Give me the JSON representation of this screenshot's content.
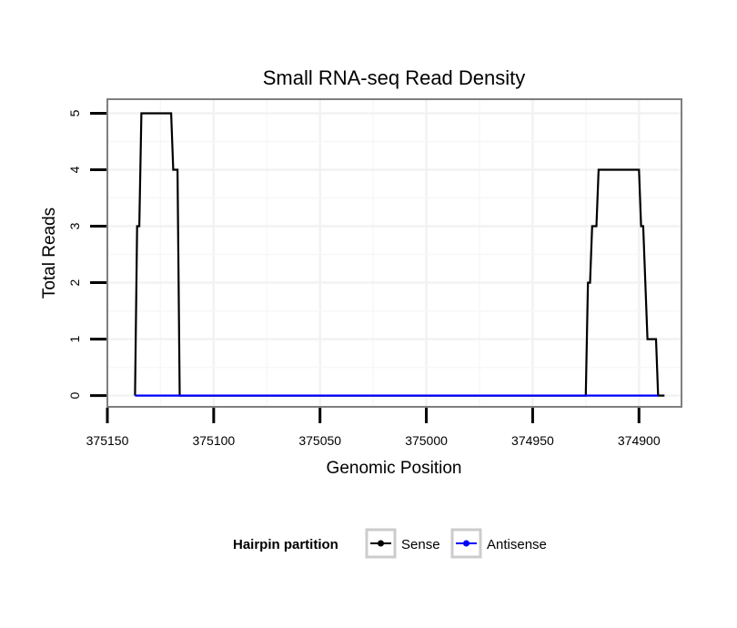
{
  "chart_data": {
    "type": "line",
    "title": "Small RNA-seq Read Density",
    "xlabel": "Genomic Position",
    "ylabel": "Total Reads",
    "xlim": [
      375150,
      374880
    ],
    "x_reversed": true,
    "ylim": [
      -0.2,
      5.25
    ],
    "xticks": [
      375150,
      375100,
      375050,
      375000,
      374950,
      374900
    ],
    "xtick_labels": [
      "375150",
      "375100",
      "375050",
      "375000",
      "374950",
      "374900"
    ],
    "yticks": [
      0,
      1,
      2,
      3,
      4,
      5
    ],
    "ytick_labels": [
      "0",
      "1",
      "2",
      "3",
      "4",
      "5"
    ],
    "grid": true,
    "legend": {
      "title": "Hairpin partition",
      "position": "bottom"
    },
    "series": [
      {
        "name": "Sense",
        "color": "#000000",
        "points": [
          [
            375137,
            0
          ],
          [
            375136,
            3
          ],
          [
            375135,
            3
          ],
          [
            375134,
            5
          ],
          [
            375120,
            5
          ],
          [
            375119,
            4
          ],
          [
            375117,
            4
          ],
          [
            375116,
            0
          ],
          [
            374925,
            0
          ],
          [
            374924,
            2
          ],
          [
            374923,
            2
          ],
          [
            374922,
            3
          ],
          [
            374920,
            3
          ],
          [
            374919,
            4
          ],
          [
            374900,
            4
          ],
          [
            374899,
            3
          ],
          [
            374898,
            3
          ],
          [
            374896,
            1
          ],
          [
            374892,
            1
          ],
          [
            374891,
            0
          ],
          [
            374888,
            0
          ]
        ]
      },
      {
        "name": "Antisense",
        "color": "#0000ff",
        "points": [
          [
            375137,
            0
          ],
          [
            375116,
            0
          ],
          [
            374925,
            0
          ],
          [
            374891,
            0
          ]
        ]
      }
    ]
  }
}
